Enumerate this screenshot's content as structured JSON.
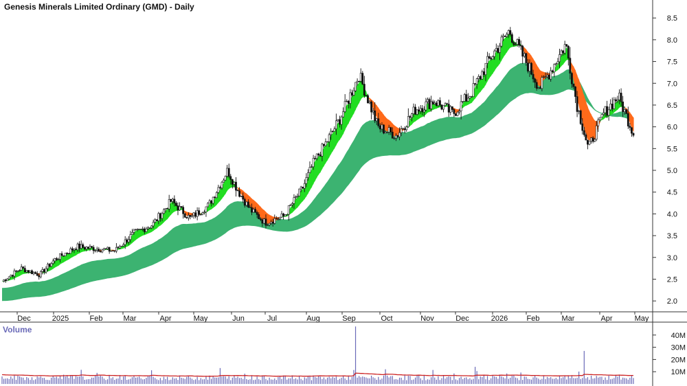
{
  "chart_data": {
    "type": "candlestick",
    "title": "Genesis Minerals Limited Ordinary (GMD) - Daily",
    "x_tick_labels": [
      "Dec",
      "2025",
      "Feb",
      "Mar",
      "Apr",
      "May",
      "Jun",
      "Jul",
      "Aug",
      "Sep",
      "Oct",
      "Nov",
      "Dec",
      "2026",
      "Feb",
      "Mar",
      "Apr",
      "May"
    ],
    "y_ticks": [
      2.0,
      2.5,
      3.0,
      3.5,
      4.0,
      4.5,
      5.0,
      5.5,
      6.0,
      6.5,
      7.0,
      7.5,
      8.0,
      8.5
    ],
    "y_tick_labels": [
      "2.0",
      "2.5",
      "3.0",
      "3.5",
      "4.0",
      "4.5",
      "5.0",
      "5.5",
      "6.0",
      "6.5",
      "7.0",
      "7.5",
      "8.0",
      "8.5"
    ],
    "ylim": [
      1.75,
      8.85
    ],
    "grid": false,
    "price_series": {
      "month_index": [
        0,
        0.5,
        1,
        1.4,
        2,
        2.5,
        3,
        3.5,
        4,
        4.5,
        5,
        5.5,
        6,
        6.3,
        6.6,
        7,
        7.5,
        8,
        8.3,
        8.6,
        9,
        9.5,
        10,
        10.5,
        11,
        11.5,
        12,
        12.5,
        13,
        13.5,
        14,
        14.3,
        14.6,
        15,
        15.3,
        15.6,
        16,
        16.4,
        16.8
      ],
      "price": [
        2.45,
        2.75,
        2.6,
        2.95,
        3.25,
        3.2,
        3.15,
        3.55,
        3.75,
        4.3,
        3.9,
        4.2,
        5.0,
        4.5,
        4.1,
        3.8,
        3.95,
        4.6,
        5.2,
        5.6,
        6.2,
        7.2,
        6.0,
        5.8,
        6.4,
        6.6,
        6.3,
        6.8,
        7.6,
        8.2,
        7.4,
        6.9,
        7.3,
        7.9,
        6.5,
        5.5,
        6.3,
        6.7,
        5.85
      ]
    },
    "short_term_band_colors": {
      "rising": "#22dd22",
      "falling": "#ff6a1a",
      "falling_light": "#f4b0b0"
    },
    "long_term_band_color": "#3cb371",
    "volume": {
      "label": "Volume",
      "y_ticks": [
        10,
        20,
        30,
        40
      ],
      "y_tick_labels": [
        "10M",
        "20M",
        "30M",
        "40M"
      ],
      "ylim": [
        0,
        50
      ],
      "bar_color": "#6a6ab8",
      "ma_color": "#cc2222",
      "spikes": [
        {
          "month_index": 9.4,
          "value": 47
        },
        {
          "month_index": 15.5,
          "value": 27
        },
        {
          "month_index": 12.6,
          "value": 14
        },
        {
          "month_index": 5.8,
          "value": 13
        },
        {
          "month_index": 10.2,
          "value": 12
        }
      ]
    }
  }
}
